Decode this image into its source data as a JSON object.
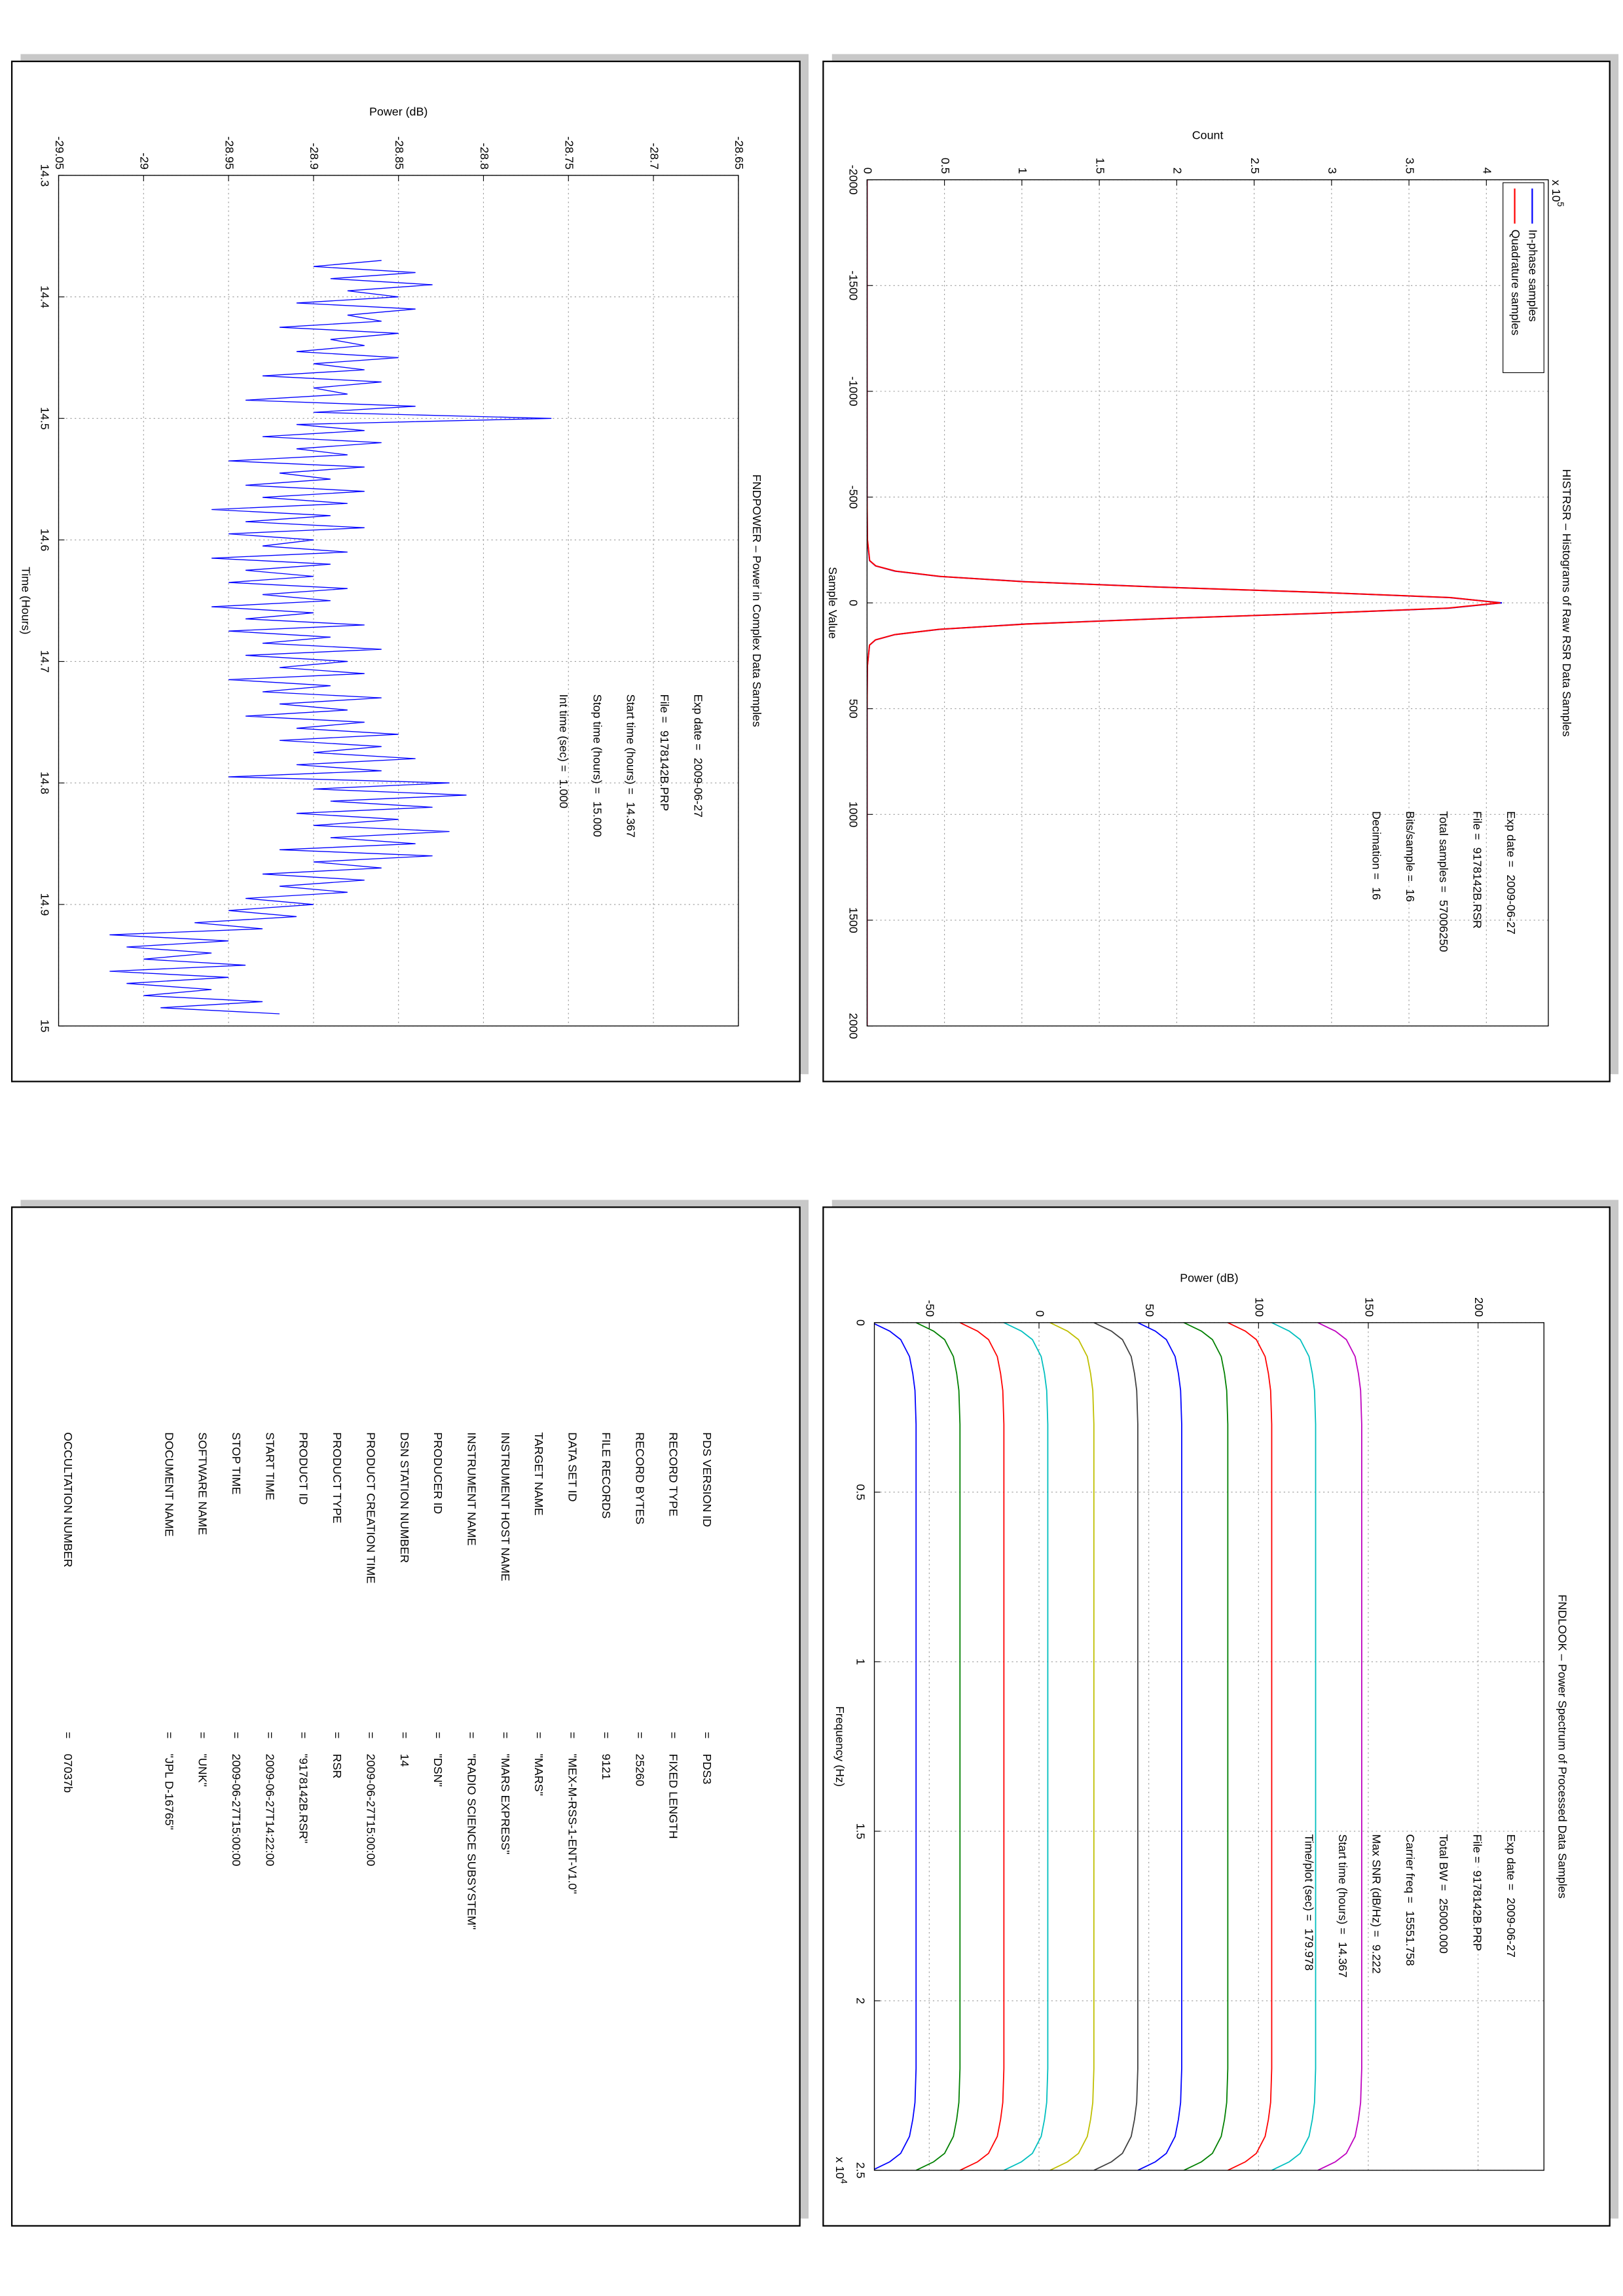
{
  "chart_data": [
    {
      "type": "line",
      "title": "FNDPOWER – Power in Complex Data Samples",
      "xlabel": "Time (Hours)",
      "ylabel": "Power (dB)",
      "x": [
        14.37,
        14.375,
        14.38,
        14.385,
        14.39,
        14.395,
        14.4,
        14.405,
        14.41,
        14.415,
        14.42,
        14.425,
        14.43,
        14.435,
        14.44,
        14.445,
        14.45,
        14.455,
        14.46,
        14.465,
        14.47,
        14.475,
        14.48,
        14.485,
        14.49,
        14.495,
        14.5,
        14.505,
        14.51,
        14.515,
        14.52,
        14.525,
        14.53,
        14.535,
        14.54,
        14.545,
        14.55,
        14.555,
        14.56,
        14.565,
        14.57,
        14.575,
        14.58,
        14.585,
        14.59,
        14.595,
        14.6,
        14.605,
        14.61,
        14.615,
        14.62,
        14.625,
        14.63,
        14.635,
        14.64,
        14.645,
        14.65,
        14.655,
        14.66,
        14.665,
        14.67,
        14.675,
        14.68,
        14.685,
        14.69,
        14.695,
        14.7,
        14.705,
        14.71,
        14.715,
        14.72,
        14.725,
        14.73,
        14.735,
        14.74,
        14.745,
        14.75,
        14.755,
        14.76,
        14.765,
        14.77,
        14.775,
        14.78,
        14.785,
        14.79,
        14.795,
        14.8,
        14.805,
        14.81,
        14.815,
        14.82,
        14.825,
        14.83,
        14.835,
        14.84,
        14.845,
        14.85,
        14.855,
        14.86,
        14.865,
        14.87,
        14.875,
        14.88,
        14.885,
        14.89,
        14.895,
        14.9,
        14.905,
        14.91,
        14.915,
        14.92,
        14.925,
        14.93,
        14.935,
        14.94,
        14.945,
        14.95,
        14.955,
        14.96,
        14.965,
        14.97,
        14.975,
        14.98,
        14.985,
        14.99
      ],
      "series": [
        {
          "color": "#0000ff",
          "values": [
            -28.86,
            -28.9,
            -28.84,
            -28.89,
            -28.83,
            -28.88,
            -28.85,
            -28.91,
            -28.84,
            -28.88,
            -28.86,
            -28.92,
            -28.85,
            -28.89,
            -28.87,
            -28.91,
            -28.85,
            -28.9,
            -28.87,
            -28.93,
            -28.86,
            -28.9,
            -28.88,
            -28.94,
            -28.84,
            -28.9,
            -28.76,
            -28.91,
            -28.87,
            -28.93,
            -28.86,
            -28.91,
            -28.88,
            -28.95,
            -28.87,
            -28.92,
            -28.89,
            -28.94,
            -28.87,
            -28.93,
            -28.88,
            -28.96,
            -28.89,
            -28.94,
            -28.87,
            -28.95,
            -28.9,
            -28.93,
            -28.88,
            -28.96,
            -28.89,
            -28.94,
            -28.9,
            -28.95,
            -28.88,
            -28.93,
            -28.89,
            -28.96,
            -28.9,
            -28.94,
            -28.87,
            -28.95,
            -28.89,
            -28.93,
            -28.86,
            -28.94,
            -28.88,
            -28.92,
            -28.87,
            -28.95,
            -28.89,
            -28.93,
            -28.86,
            -28.92,
            -28.88,
            -28.94,
            -28.87,
            -28.91,
            -28.85,
            -28.92,
            -28.86,
            -28.9,
            -28.84,
            -28.91,
            -28.86,
            -28.95,
            -28.82,
            -28.9,
            -28.81,
            -28.89,
            -28.83,
            -28.91,
            -28.85,
            -28.9,
            -28.82,
            -28.89,
            -28.84,
            -28.92,
            -28.83,
            -28.9,
            -28.86,
            -28.93,
            -28.87,
            -28.92,
            -28.88,
            -28.94,
            -28.9,
            -28.95,
            -28.91,
            -28.97,
            -28.93,
            -29.02,
            -28.95,
            -29.01,
            -28.96,
            -29.0,
            -28.94,
            -29.02,
            -28.95,
            -29.01,
            -28.96,
            -29.0,
            -28.93,
            -28.99,
            -28.92
          ]
        }
      ],
      "xlim": [
        14.3,
        15
      ],
      "xticks": [
        14.3,
        14.4,
        14.5,
        14.6,
        14.7,
        14.8,
        14.9,
        15
      ],
      "ylim": [
        -29.05,
        -28.65
      ],
      "yticks": [
        -29.05,
        -29,
        -28.95,
        -28.9,
        -28.85,
        -28.8,
        -28.75,
        -28.7,
        -28.65
      ],
      "grid": true,
      "annotations": [
        {
          "label": "Exp date =",
          "value": "2009-06-27"
        },
        {
          "label": "File =",
          "value": "9178142B.PRP"
        },
        {
          "label": "Start time (hours) =",
          "value": "14.367"
        },
        {
          "label": "Stop time (hours) =",
          "value": "15.000"
        },
        {
          "label": "Int time (sec) =",
          "value": "1.000"
        }
      ]
    },
    {
      "type": "line",
      "title": "HISTRSR – Histograms of Raw RSR Data Samples",
      "xlabel": "Sample Value",
      "ylabel": "Count",
      "x": [
        -2000,
        -1500,
        -1000,
        -500,
        -300,
        -200,
        -175,
        -150,
        -125,
        -100,
        -75,
        -50,
        -25,
        0,
        25,
        50,
        75,
        100,
        125,
        150,
        175,
        200,
        300,
        500,
        1000,
        1500,
        2000
      ],
      "series": [
        {
          "name": "In-phase samples",
          "color": "#0000ff",
          "values": [
            0,
            0,
            0,
            0,
            200,
            1600,
            5500,
            18000,
            47000,
            102000,
            188000,
            290000,
            376000,
            410000,
            376000,
            290000,
            188000,
            102000,
            47000,
            18000,
            5500,
            1600,
            200,
            0,
            0,
            0,
            0
          ]
        },
        {
          "name": "Quadrature samples",
          "color": "#ff0000",
          "values": [
            0,
            0,
            0,
            0,
            250,
            1700,
            5600,
            18500,
            47500,
            101000,
            187000,
            291000,
            377000,
            409000,
            375000,
            289000,
            189000,
            103000,
            46500,
            17800,
            5400,
            1550,
            220,
            0,
            0,
            0,
            0
          ]
        }
      ],
      "xlim": [
        -2000,
        2000
      ],
      "xticks": [
        -2000,
        -1500,
        -1000,
        -500,
        0,
        500,
        1000,
        1500,
        2000
      ],
      "ylim": [
        0,
        440000
      ],
      "yticks": [
        0,
        {
          "value": 50000,
          "label": "0.5"
        },
        {
          "value": 100000,
          "label": "1"
        },
        {
          "value": 150000,
          "label": "1.5"
        },
        {
          "value": 200000,
          "label": "2"
        },
        {
          "value": 250000,
          "label": "2.5"
        },
        {
          "value": 300000,
          "label": "3"
        },
        {
          "value": 350000,
          "label": "3.5"
        },
        {
          "value": 400000,
          "label": "4"
        }
      ],
      "y_multiplier": {
        "base": "x 10",
        "exponent": "5"
      },
      "grid": true,
      "legend": "upper left",
      "annotations": [
        {
          "label": "Exp date =",
          "value": "2009-06-27"
        },
        {
          "label": "File =",
          "value": "9178142B.RSR"
        },
        {
          "label": "Total samples =",
          "value": "57006250"
        },
        {
          "label": "Bits/sample =",
          "value": "16"
        },
        {
          "label": "Decimation =",
          "value": "16"
        }
      ]
    },
    {
      "type": "line",
      "title": "FNDLOOK – Power Spectrum of Processed Data Samples",
      "xlabel": "Frequency (Hz)",
      "ylabel": "Power (dB)",
      "x": [
        0,
        250,
        500,
        1000,
        1500,
        2000,
        3000,
        6000,
        10000,
        15000,
        19000,
        22000,
        23000,
        23500,
        24000,
        24500,
        24750,
        25000
      ],
      "series": [
        {
          "color": "#0000ff",
          "values": [
            -76,
            -68,
            -63,
            -59,
            -57.5,
            -56.5,
            -56,
            -56,
            -56,
            -56,
            -56,
            -56,
            -56.5,
            -57.5,
            -59,
            -63,
            -68,
            -76
          ]
        },
        {
          "color": "#008000",
          "values": [
            -56,
            -48,
            -43,
            -39,
            -37.5,
            -36.5,
            -36,
            -36,
            -36,
            -36,
            -36,
            -36,
            -36.5,
            -37.5,
            -39,
            -43,
            -48,
            -56
          ]
        },
        {
          "color": "#ff0000",
          "values": [
            -36,
            -28,
            -23,
            -19,
            -17.5,
            -16.5,
            -16,
            -16,
            -16,
            -16,
            -16,
            -16,
            -16.5,
            -17.5,
            -19,
            -23,
            -28,
            -36
          ]
        },
        {
          "color": "#00bfbf",
          "values": [
            -16,
            -8,
            -3,
            1,
            2.5,
            3.5,
            4,
            4,
            4,
            4,
            4,
            4,
            3.5,
            2.5,
            1,
            -3,
            -8,
            -16
          ]
        },
        {
          "color": "#bfbf00",
          "values": [
            5,
            13,
            18,
            22,
            23.5,
            24.5,
            25,
            25,
            25,
            25,
            25,
            25,
            24.5,
            23.5,
            22,
            18,
            13,
            5
          ]
        },
        {
          "color": "#404040",
          "values": [
            25,
            33,
            38,
            42,
            43.5,
            44.5,
            45,
            45,
            45,
            45,
            45,
            45,
            44.5,
            43.5,
            42,
            38,
            33,
            25
          ]
        },
        {
          "color": "#0000ff",
          "values": [
            45,
            53,
            58,
            62,
            63.5,
            64.5,
            65,
            65,
            65,
            65,
            65,
            65,
            64.5,
            63.5,
            62,
            58,
            53,
            45
          ]
        },
        {
          "color": "#008000",
          "values": [
            66,
            74,
            79,
            83,
            84.5,
            85.5,
            86,
            86,
            86,
            86,
            86,
            86,
            85.5,
            84.5,
            83,
            79,
            74,
            66
          ]
        },
        {
          "color": "#ff0000",
          "values": [
            86,
            94,
            99,
            103,
            104.5,
            105.5,
            106,
            106,
            106,
            106,
            106,
            106,
            105.5,
            104.5,
            103,
            99,
            94,
            86
          ]
        },
        {
          "color": "#00bfbf",
          "values": [
            106,
            114,
            119,
            123,
            124.5,
            125.5,
            126,
            126,
            126,
            126,
            126,
            126,
            125.5,
            124.5,
            123,
            119,
            114,
            106
          ]
        },
        {
          "color": "#bf00bf",
          "values": [
            127,
            135,
            140,
            144,
            145.5,
            146.5,
            147,
            147,
            147,
            147,
            147,
            147,
            146.5,
            145.5,
            144,
            140,
            135,
            127
          ]
        }
      ],
      "xlim": [
        0,
        25000
      ],
      "xticks": [
        0,
        {
          "value": 5000,
          "label": "0.5"
        },
        {
          "value": 10000,
          "label": "1"
        },
        {
          "value": 15000,
          "label": "1.5"
        },
        {
          "value": 20000,
          "label": "2"
        },
        {
          "value": 25000,
          "label": "2.5"
        }
      ],
      "x_multiplier": {
        "base": "x 10",
        "exponent": "4"
      },
      "ylim": [
        -75,
        230
      ],
      "yticks": [
        -50,
        0,
        50,
        100,
        150,
        200
      ],
      "grid": true,
      "annotations": [
        {
          "label": "Exp date =",
          "value": "2009-06-27"
        },
        {
          "label": "File =",
          "value": "9178142B.PRP"
        },
        {
          "label": "Total BW =",
          "value": "25000.000"
        },
        {
          "label": "Carrier freq =",
          "value": "15551.758"
        },
        {
          "label": "Max SNR (dB/Hz) =",
          "value": "9.222"
        },
        {
          "label": "Start time (hours) =",
          "value": "14.367"
        },
        {
          "label": "Time/plot (sec) =",
          "value": "179.978"
        }
      ]
    }
  ],
  "label_table": {
    "separator": "=",
    "rows": [
      [
        "PDS VERSION ID",
        "PDS3"
      ],
      [
        "RECORD TYPE",
        "FIXED LENGTH"
      ],
      [
        "RECORD BYTES",
        "25260"
      ],
      [
        "FILE RECORDS",
        "9121"
      ],
      [
        "DATA SET ID",
        "\"MEX-M-RSS-1-ENT-V1.0\""
      ],
      [
        "TARGET NAME",
        "\"MARS\""
      ],
      [
        "INSTRUMENT HOST NAME",
        "\"MARS EXPRESS\""
      ],
      [
        "INSTRUMENT NAME",
        "\"RADIO SCIENCE SUBSYSTEM\""
      ],
      [
        "PRODUCER ID",
        "\"DSN\""
      ],
      [
        "DSN STATION NUMBER",
        "14"
      ],
      [
        "PRODUCT CREATION TIME",
        "2009-06-27T15:00:00"
      ],
      [
        "PRODUCT TYPE",
        "RSR"
      ],
      [
        "PRODUCT ID",
        "\"9178142B.RSR\""
      ],
      [
        "START TIME",
        "2009-06-27T14:22:00"
      ],
      [
        "STOP TIME",
        "2009-06-27T15:00:00"
      ],
      [
        "SOFTWARE NAME",
        "\"UNK\""
      ],
      [
        "DOCUMENT NAME",
        "\"JPL D-16765\""
      ],
      [
        "OCCULTATION NUMBER",
        "07037b"
      ]
    ]
  }
}
